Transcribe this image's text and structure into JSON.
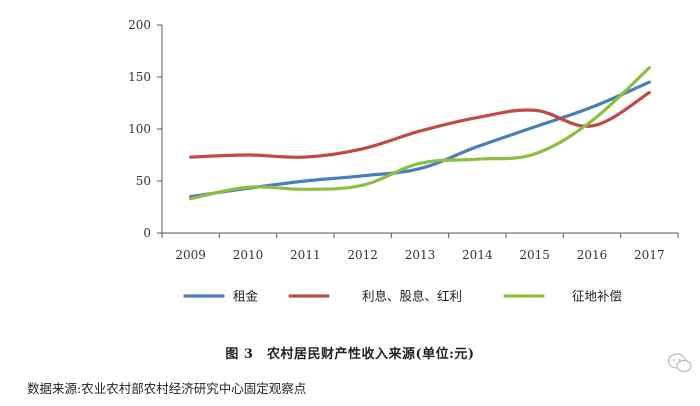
{
  "chart_data": {
    "type": "line",
    "categories": [
      "2009",
      "2010",
      "2011",
      "2012",
      "2013",
      "2014",
      "2015",
      "2016",
      "2017"
    ],
    "series": [
      {
        "name": "租金",
        "color": "#4a7ebb",
        "values": [
          35,
          43,
          50,
          55,
          62,
          83,
          102,
          121,
          145
        ]
      },
      {
        "name": "利息、股息、红利",
        "color": "#be4b48",
        "values": [
          73,
          75,
          73,
          81,
          98,
          111,
          118,
          103,
          135
        ]
      },
      {
        "name": "征地补偿",
        "color": "#8cbf3f",
        "values": [
          33,
          44,
          42,
          46,
          67,
          71,
          76,
          108,
          159
        ]
      }
    ],
    "ylim": [
      0,
      200
    ],
    "yticks": [
      0,
      50,
      100,
      150,
      200
    ],
    "legend": "bottom",
    "grid": false
  },
  "caption": "图 3　农村居民财产性收入来源(单位:元)",
  "source": "数据来源:农业农村部农村经济研究中心固定观察点"
}
